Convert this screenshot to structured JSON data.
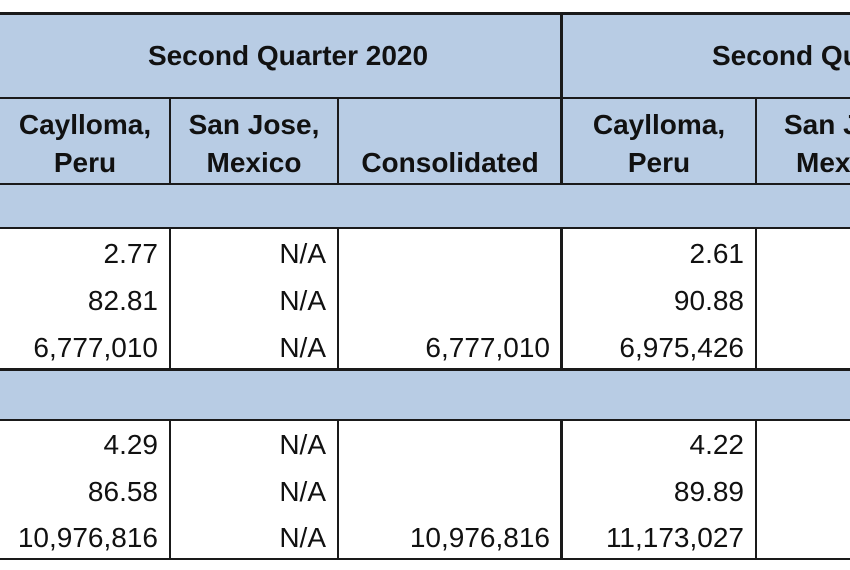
{
  "table": {
    "group_headers": [
      "Second Quarter 2020",
      "Second Qu"
    ],
    "column_headers": [
      {
        "line1": "Caylloma,",
        "line2": "Peru"
      },
      {
        "line1": "San Jose,",
        "line2": "Mexico"
      },
      {
        "line1": "",
        "line2": "Consolidated"
      },
      {
        "line1": "Caylloma,",
        "line2": "Peru"
      },
      {
        "line1": "San J",
        "line2": "Mex"
      }
    ],
    "sections": [
      {
        "rows": [
          [
            "2.77",
            "N/A",
            "",
            "2.61"
          ],
          [
            "82.81",
            "N/A",
            "",
            "90.88"
          ],
          [
            "6,777,010",
            "N/A",
            "6,777,010",
            "6,975,426"
          ]
        ]
      },
      {
        "rows": [
          [
            "4.29",
            "N/A",
            "",
            "4.22"
          ],
          [
            "86.58",
            "N/A",
            "",
            "89.89"
          ],
          [
            "10,976,816",
            "N/A",
            "10,976,816",
            "11,173,027"
          ]
        ]
      }
    ]
  },
  "colors": {
    "header_fill": "#b8cce4",
    "border": "#1a1a1a"
  }
}
